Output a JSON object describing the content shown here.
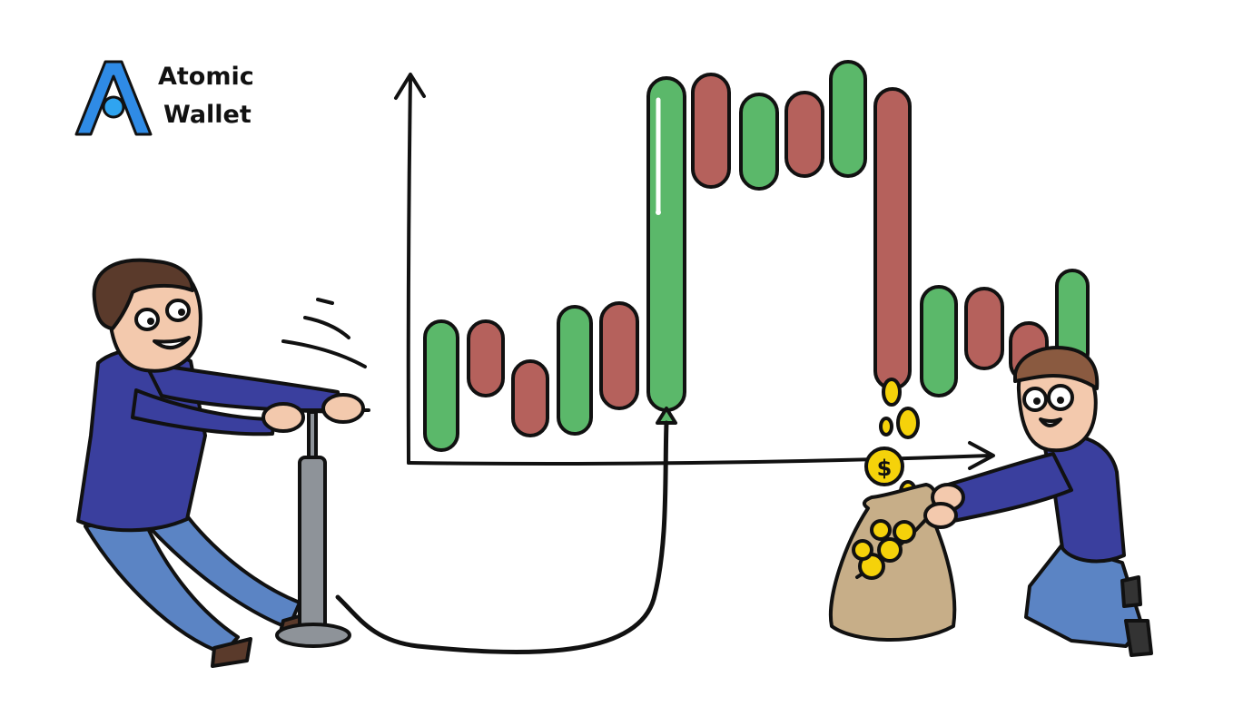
{
  "logo": {
    "line1": "Atomic",
    "line2": "Wallet",
    "colors": {
      "outer": "#2f8be6",
      "inner": "#2fa4f0",
      "dark": "#111111"
    }
  },
  "palette": {
    "bull": "#5bb86a",
    "bear": "#b5615c",
    "outline": "#111111",
    "skin": "#f3c9ad",
    "hair": "#5a3a2b",
    "shirt": "#3a3f9e",
    "jeans": "#5b84c4",
    "coin": "#f5d20a",
    "bag": "#c7ae88",
    "pump": "#8e9399"
  },
  "candles": [
    {
      "color": "bull"
    },
    {
      "color": "bear"
    },
    {
      "color": "bear"
    },
    {
      "color": "bull"
    },
    {
      "color": "bear"
    },
    {
      "color": "bull"
    },
    {
      "color": "bear"
    },
    {
      "color": "bull"
    },
    {
      "color": "bear"
    },
    {
      "color": "bull"
    },
    {
      "color": "bear"
    },
    {
      "color": "bull"
    },
    {
      "color": "bear"
    },
    {
      "color": "bear"
    },
    {
      "color": "bull"
    }
  ],
  "icons": {
    "logo": "atomic-wallet-logo-icon",
    "coin": "dollar-coin-icon",
    "pump": "air-pump-icon",
    "bag": "money-bag-icon"
  }
}
